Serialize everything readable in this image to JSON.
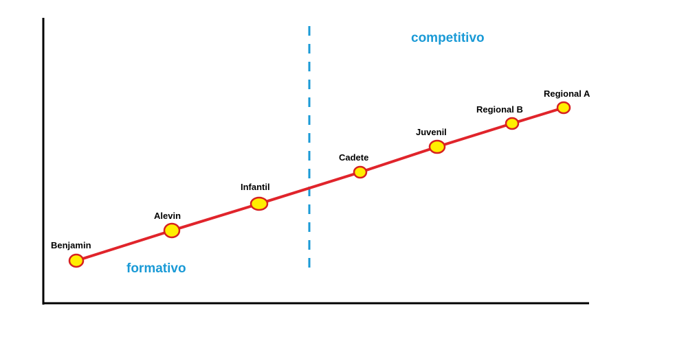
{
  "diagram": {
    "regions": [
      {
        "id": "formativo",
        "label": "formativo"
      },
      {
        "id": "competitivo",
        "label": "competitivo"
      }
    ],
    "stages": [
      {
        "label": "Benjamin",
        "order": 1
      },
      {
        "label": "Alevin",
        "order": 2
      },
      {
        "label": "Infantil",
        "order": 3
      },
      {
        "label": "Cadete",
        "order": 4
      },
      {
        "label": "Juvenil",
        "order": 5
      },
      {
        "label": "Regional B",
        "order": 6
      },
      {
        "label": "Regional A",
        "order": 7
      }
    ],
    "colors": {
      "axis": "#000000",
      "line": "#e0242b",
      "node_fill": "#ffee00",
      "node_stroke": "#d62020",
      "divider": "#1a9ad6",
      "region_text": "#1a9ad6"
    }
  }
}
